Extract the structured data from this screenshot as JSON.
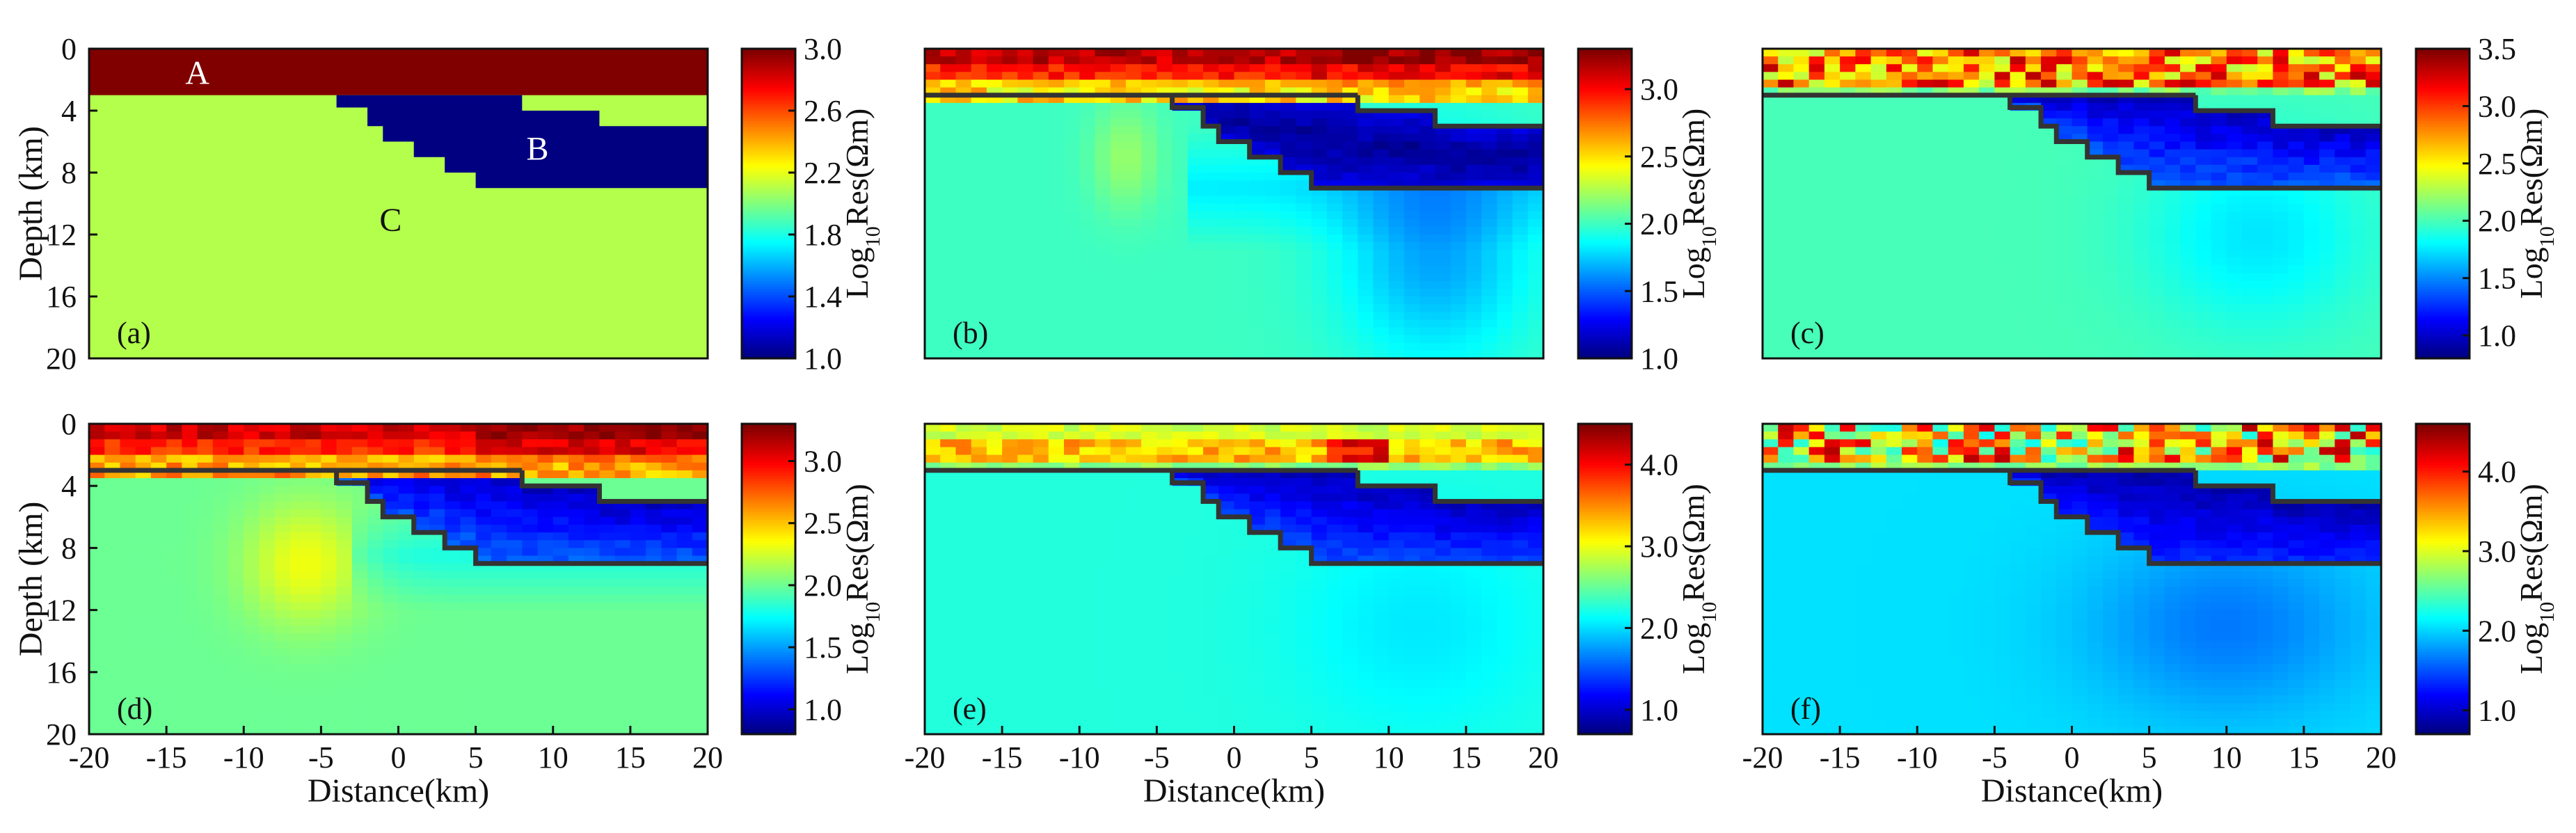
{
  "figure": {
    "x_label": "Distance(km)",
    "y_label": "Depth (km)",
    "colorbar_label": "Log10Res(Ωm)",
    "panel_labels": [
      "(a)",
      "(b)",
      "(c)",
      "(d)",
      "(e)",
      "(f)"
    ],
    "region_labels": [
      "A",
      "B",
      "C"
    ],
    "boundary_color": "#333333"
  },
  "chart_data": [
    {
      "id": "a",
      "type": "heatmap",
      "title": "(a)",
      "xlabel": "",
      "ylabel": "Depth (km)",
      "xlim": [
        -20,
        20
      ],
      "ylim": [
        0,
        20
      ],
      "x_ticks": [],
      "y_ticks": [
        "0",
        "4",
        "8",
        "12",
        "16",
        "20"
      ],
      "model": "true",
      "region_labels": [
        "A",
        "B",
        "C"
      ],
      "colorbar": {
        "range": [
          1.0,
          3.0
        ],
        "ticks": [
          "1.0",
          "1.4",
          "1.8",
          "2.2",
          "2.6",
          "3.0"
        ],
        "tick_values": [
          1.0,
          1.4,
          1.8,
          2.2,
          2.6,
          3.0
        ]
      }
    },
    {
      "id": "b",
      "type": "heatmap",
      "title": "(b)",
      "xlabel": "",
      "ylabel": "",
      "xlim": [
        -20,
        20
      ],
      "ylim": [
        0,
        20
      ],
      "x_ticks": [],
      "y_ticks": [],
      "model": "inv_b",
      "region_labels": [],
      "colorbar": {
        "range": [
          1.0,
          3.3
        ],
        "ticks": [
          "1.0",
          "1.5",
          "2.0",
          "2.5",
          "3.0"
        ],
        "tick_values": [
          1.0,
          1.5,
          2.0,
          2.5,
          3.0
        ]
      }
    },
    {
      "id": "c",
      "type": "heatmap",
      "title": "(c)",
      "xlabel": "",
      "ylabel": "",
      "xlim": [
        -20,
        20
      ],
      "ylim": [
        0,
        20
      ],
      "x_ticks": [],
      "y_ticks": [],
      "model": "inv_c",
      "region_labels": [],
      "colorbar": {
        "range": [
          0.8,
          3.5
        ],
        "ticks": [
          "1.0",
          "1.5",
          "2.0",
          "2.5",
          "3.0",
          "3.5"
        ],
        "tick_values": [
          1.0,
          1.5,
          2.0,
          2.5,
          3.0,
          3.5
        ]
      }
    },
    {
      "id": "d",
      "type": "heatmap",
      "title": "(d)",
      "xlabel": "Distance(km)",
      "ylabel": "Depth (km)",
      "xlim": [
        -20,
        20
      ],
      "ylim": [
        0,
        20
      ],
      "x_ticks": [
        "-20",
        "-15",
        "-10",
        "-5",
        "0",
        "5",
        "10",
        "15",
        "20"
      ],
      "y_ticks": [
        "0",
        "4",
        "8",
        "12",
        "16",
        "20"
      ],
      "model": "inv_d",
      "region_labels": [],
      "colorbar": {
        "range": [
          0.8,
          3.3
        ],
        "ticks": [
          "1.0",
          "1.5",
          "2.0",
          "2.5",
          "3.0"
        ],
        "tick_values": [
          1.0,
          1.5,
          2.0,
          2.5,
          3.0
        ]
      }
    },
    {
      "id": "e",
      "type": "heatmap",
      "title": "(e)",
      "xlabel": "Distance(km)",
      "ylabel": "",
      "xlim": [
        -20,
        20
      ],
      "ylim": [
        0,
        20
      ],
      "x_ticks": [
        "-20",
        "-15",
        "-10",
        "-5",
        "0",
        "5",
        "10",
        "15",
        "20"
      ],
      "y_ticks": [],
      "model": "inv_e",
      "region_labels": [],
      "colorbar": {
        "range": [
          0.7,
          4.5
        ],
        "ticks": [
          "1.0",
          "2.0",
          "3.0",
          "4.0"
        ],
        "tick_values": [
          1.0,
          2.0,
          3.0,
          4.0
        ]
      }
    },
    {
      "id": "f",
      "type": "heatmap",
      "title": "(f)",
      "xlabel": "Distance(km)",
      "ylabel": "",
      "xlim": [
        -20,
        20
      ],
      "ylim": [
        0,
        20
      ],
      "x_ticks": [
        "-20",
        "-15",
        "-10",
        "-5",
        "0",
        "5",
        "10",
        "15",
        "20"
      ],
      "y_ticks": [],
      "model": "inv_f",
      "region_labels": [],
      "colorbar": {
        "range": [
          0.7,
          4.6
        ],
        "ticks": [
          "1.0",
          "2.0",
          "3.0",
          "4.0"
        ],
        "tick_values": [
          1.0,
          2.0,
          3.0,
          4.0
        ]
      }
    }
  ],
  "model_true": {
    "layer_A": {
      "depth_range_km": [
        0,
        3
      ],
      "log10_res": 3.0
    },
    "body_B": {
      "log10_res": 1.0,
      "top_depth_km": 3,
      "max_depth_km": 9
    },
    "background_C": {
      "log10_res": 2.1
    },
    "boundary_B_km": [
      [
        -4,
        3
      ],
      [
        -4,
        3.8
      ],
      [
        -2,
        3.8
      ],
      [
        -2,
        5
      ],
      [
        -1,
        5
      ],
      [
        -1,
        6
      ],
      [
        1,
        6
      ],
      [
        1,
        7
      ],
      [
        3,
        7
      ],
      [
        3,
        8
      ],
      [
        5,
        8
      ],
      [
        5,
        9
      ],
      [
        20,
        9
      ],
      [
        20,
        5
      ],
      [
        13,
        5
      ],
      [
        13,
        4
      ],
      [
        8,
        4
      ],
      [
        8,
        3
      ]
    ]
  }
}
